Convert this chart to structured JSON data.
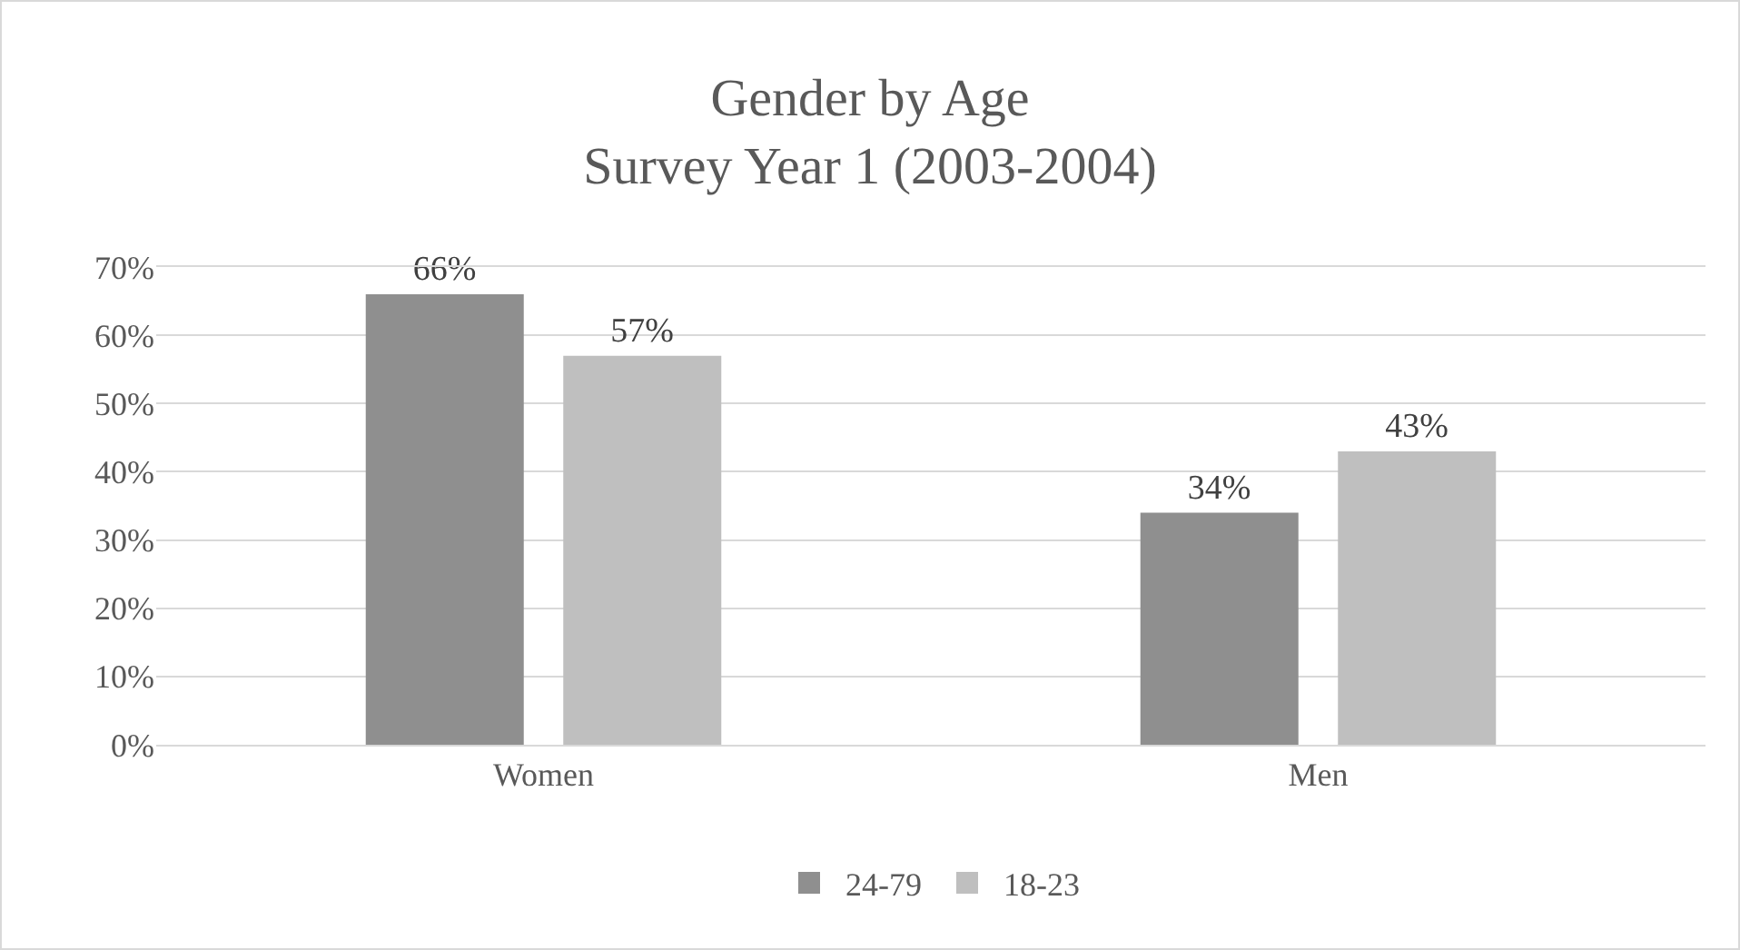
{
  "chart_data": {
    "type": "bar",
    "title": "Gender by Age",
    "subtitle": "Survey Year 1 (2003-2004)",
    "categories": [
      "Women",
      "Men"
    ],
    "series": [
      {
        "name": "24-79",
        "color": "#8f8f8f",
        "values": [
          66,
          34
        ],
        "value_labels": [
          "66%",
          "34%"
        ]
      },
      {
        "name": "18-23",
        "color": "#bfbfbf",
        "values": [
          57,
          43
        ],
        "value_labels": [
          "57%",
          "43%"
        ]
      }
    ],
    "ylim": [
      0,
      70
    ],
    "yticks": [
      {
        "value": 0,
        "label": "0%"
      },
      {
        "value": 10,
        "label": "10%"
      },
      {
        "value": 20,
        "label": "20%"
      },
      {
        "value": 30,
        "label": "30%"
      },
      {
        "value": 40,
        "label": "40%"
      },
      {
        "value": 50,
        "label": "50%"
      },
      {
        "value": 60,
        "label": "60%"
      },
      {
        "value": 70,
        "label": "70%"
      }
    ],
    "grid": "y",
    "legend": "bottom"
  }
}
